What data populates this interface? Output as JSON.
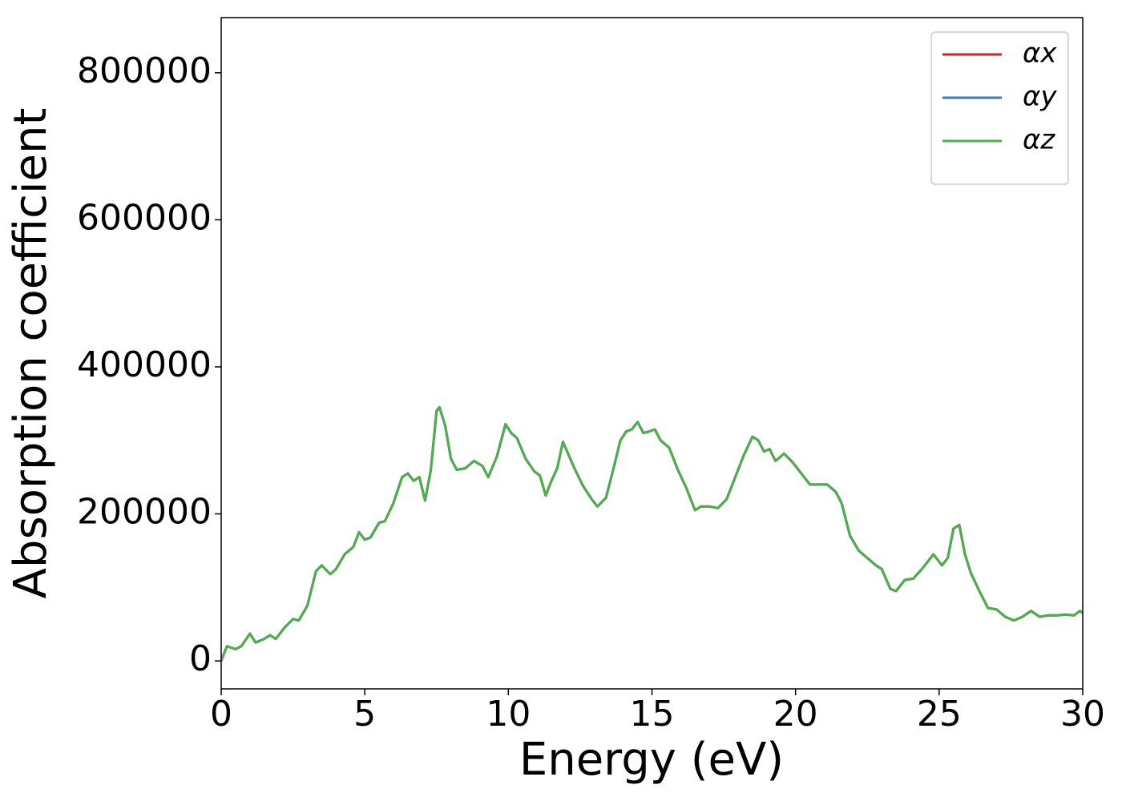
{
  "chart_data": {
    "type": "line",
    "xlabel": "Energy (eV)",
    "ylabel": "Absorption coefficient",
    "x": [
      0,
      0.2,
      0.5,
      0.7,
      1.0,
      1.2,
      1.5,
      1.7,
      1.9,
      2.2,
      2.5,
      2.7,
      3.0,
      3.3,
      3.5,
      3.8,
      4.0,
      4.3,
      4.6,
      4.8,
      5.0,
      5.2,
      5.5,
      5.7,
      6.0,
      6.3,
      6.5,
      6.7,
      6.9,
      7.1,
      7.3,
      7.5,
      7.6,
      7.8,
      8.0,
      8.2,
      8.5,
      8.8,
      9.1,
      9.3,
      9.6,
      9.9,
      10.1,
      10.3,
      10.6,
      10.9,
      11.1,
      11.3,
      11.5,
      11.7,
      11.9,
      12.1,
      12.3,
      12.6,
      12.9,
      13.1,
      13.4,
      13.7,
      13.9,
      14.1,
      14.3,
      14.5,
      14.7,
      14.9,
      15.1,
      15.3,
      15.6,
      15.9,
      16.2,
      16.5,
      16.7,
      17.0,
      17.3,
      17.6,
      17.9,
      18.2,
      18.5,
      18.7,
      18.9,
      19.1,
      19.3,
      19.6,
      19.9,
      20.2,
      20.5,
      20.8,
      21.1,
      21.4,
      21.6,
      21.9,
      22.2,
      22.5,
      22.8,
      23.0,
      23.3,
      23.5,
      23.8,
      24.1,
      24.4,
      24.8,
      25.1,
      25.3,
      25.5,
      25.7,
      25.9,
      26.1,
      26.4,
      26.7,
      27.0,
      27.3,
      27.6,
      27.9,
      28.2,
      28.5,
      28.8,
      29.1,
      29.4,
      29.7,
      29.9,
      30
    ],
    "series": [
      {
        "name": "αx",
        "color": "#e41a1c",
        "values": [
          0,
          20000,
          16000,
          20000,
          37000,
          25000,
          30000,
          35000,
          30000,
          45000,
          57000,
          55000,
          75000,
          122000,
          130000,
          118000,
          125000,
          145000,
          155000,
          175000,
          165000,
          168000,
          188000,
          190000,
          215000,
          250000,
          255000,
          245000,
          250000,
          218000,
          260000,
          340000,
          345000,
          320000,
          275000,
          260000,
          262000,
          272000,
          265000,
          250000,
          278000,
          322000,
          310000,
          303000,
          275000,
          258000,
          252000,
          225000,
          245000,
          262000,
          298000,
          280000,
          262000,
          238000,
          220000,
          210000,
          222000,
          268000,
          300000,
          312000,
          315000,
          325000,
          310000,
          312000,
          315000,
          300000,
          290000,
          260000,
          235000,
          205000,
          210000,
          210000,
          208000,
          220000,
          250000,
          280000,
          305000,
          300000,
          285000,
          288000,
          272000,
          282000,
          270000,
          255000,
          240000,
          240000,
          240000,
          230000,
          215000,
          170000,
          150000,
          140000,
          130000,
          125000,
          98000,
          95000,
          110000,
          112000,
          125000,
          145000,
          130000,
          140000,
          180000,
          185000,
          145000,
          120000,
          95000,
          72000,
          70000,
          60000,
          55000,
          60000,
          68000,
          60000,
          62000,
          62000,
          63000,
          62000,
          68000,
          65000
        ]
      },
      {
        "name": "αy",
        "color": "#377eb8",
        "values": [
          0,
          20000,
          16000,
          20000,
          37000,
          25000,
          30000,
          35000,
          30000,
          45000,
          57000,
          55000,
          75000,
          122000,
          130000,
          118000,
          125000,
          145000,
          155000,
          175000,
          165000,
          168000,
          188000,
          190000,
          215000,
          250000,
          255000,
          245000,
          250000,
          218000,
          260000,
          340000,
          345000,
          320000,
          275000,
          260000,
          262000,
          272000,
          265000,
          250000,
          278000,
          322000,
          310000,
          303000,
          275000,
          258000,
          252000,
          225000,
          245000,
          262000,
          298000,
          280000,
          262000,
          238000,
          220000,
          210000,
          222000,
          268000,
          300000,
          312000,
          315000,
          325000,
          310000,
          312000,
          315000,
          300000,
          290000,
          260000,
          235000,
          205000,
          210000,
          210000,
          208000,
          220000,
          250000,
          280000,
          305000,
          300000,
          285000,
          288000,
          272000,
          282000,
          270000,
          255000,
          240000,
          240000,
          240000,
          230000,
          215000,
          170000,
          150000,
          140000,
          130000,
          125000,
          98000,
          95000,
          110000,
          112000,
          125000,
          145000,
          130000,
          140000,
          180000,
          185000,
          145000,
          120000,
          95000,
          72000,
          70000,
          60000,
          55000,
          60000,
          68000,
          60000,
          62000,
          62000,
          63000,
          62000,
          68000,
          65000
        ]
      },
      {
        "name": "αz",
        "color": "#4daf4a",
        "values": [
          0,
          20000,
          16000,
          20000,
          37000,
          25000,
          30000,
          35000,
          30000,
          45000,
          57000,
          55000,
          75000,
          122000,
          130000,
          118000,
          125000,
          145000,
          155000,
          175000,
          165000,
          168000,
          188000,
          190000,
          215000,
          250000,
          255000,
          245000,
          250000,
          218000,
          260000,
          340000,
          345000,
          320000,
          275000,
          260000,
          262000,
          272000,
          265000,
          250000,
          278000,
          322000,
          310000,
          303000,
          275000,
          258000,
          252000,
          225000,
          245000,
          262000,
          298000,
          280000,
          262000,
          238000,
          220000,
          210000,
          222000,
          268000,
          300000,
          312000,
          315000,
          325000,
          310000,
          312000,
          315000,
          300000,
          290000,
          260000,
          235000,
          205000,
          210000,
          210000,
          208000,
          220000,
          250000,
          280000,
          305000,
          300000,
          285000,
          288000,
          272000,
          282000,
          270000,
          255000,
          240000,
          240000,
          240000,
          230000,
          215000,
          170000,
          150000,
          140000,
          130000,
          125000,
          98000,
          95000,
          110000,
          112000,
          125000,
          145000,
          130000,
          140000,
          180000,
          185000,
          145000,
          120000,
          95000,
          72000,
          70000,
          60000,
          55000,
          60000,
          68000,
          60000,
          62000,
          62000,
          63000,
          62000,
          68000,
          65000
        ]
      }
    ],
    "xlim": [
      0,
      30
    ],
    "xticks": [
      0,
      5,
      10,
      15,
      20,
      25,
      30
    ],
    "ylim": [
      -38000,
      875000
    ],
    "yticks": [
      0,
      200000,
      400000,
      600000,
      800000
    ],
    "grid": false,
    "legend": "upper right"
  }
}
